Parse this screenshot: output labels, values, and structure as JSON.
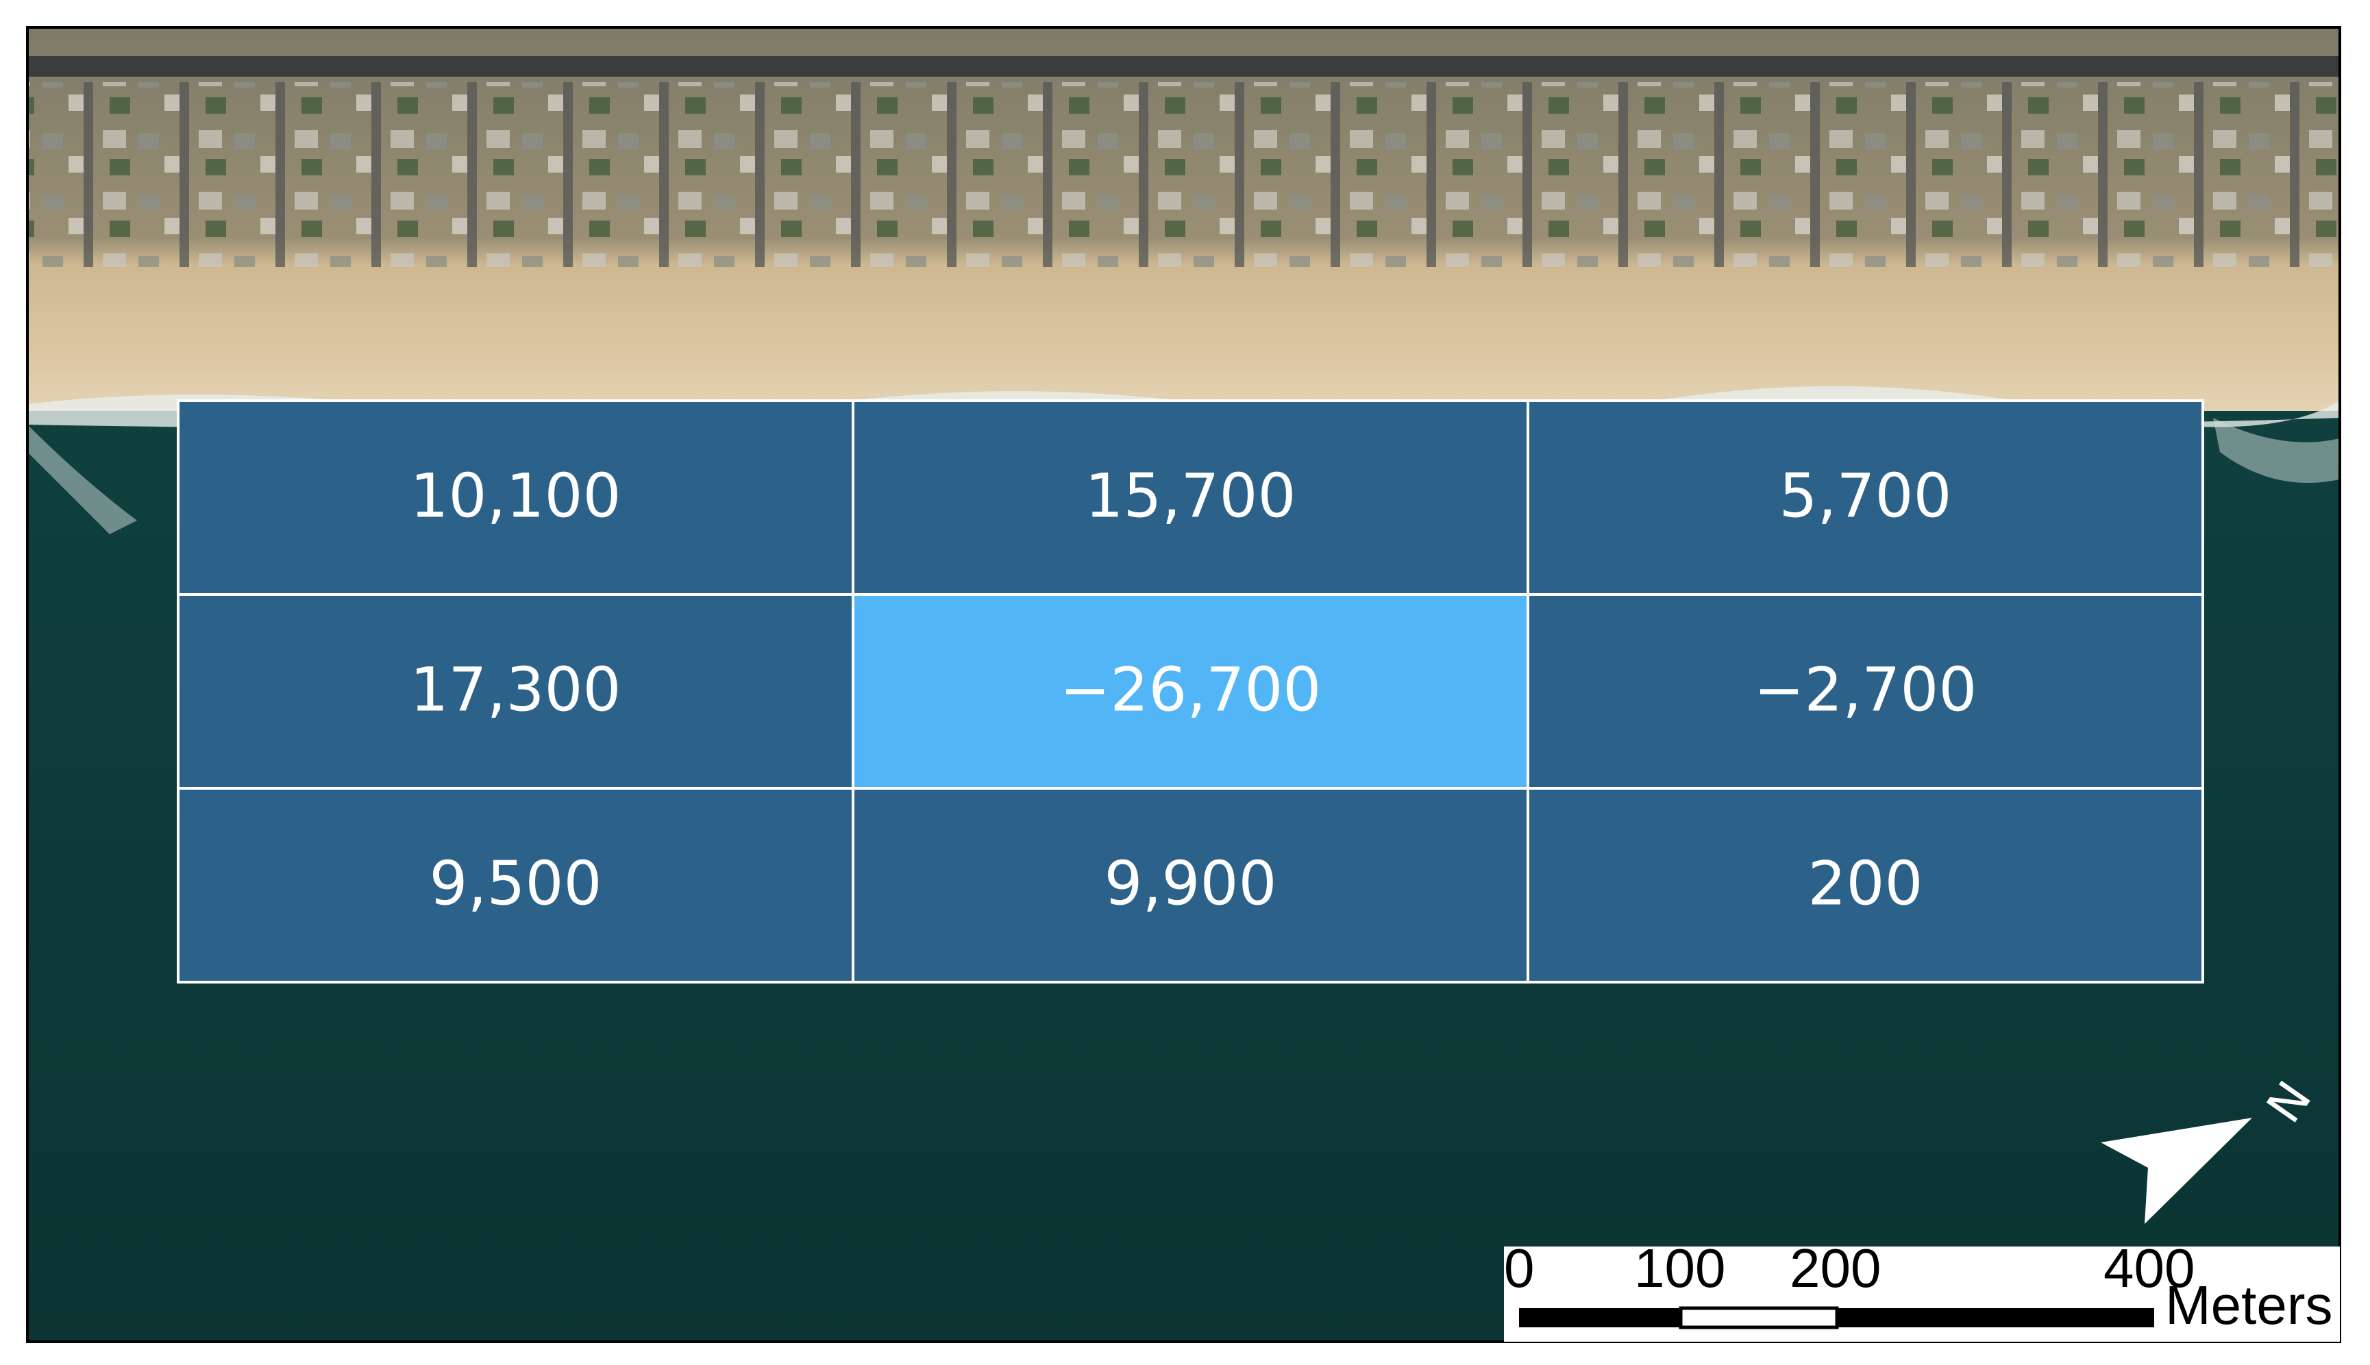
{
  "grid": {
    "rows": [
      [
        "10,100",
        "15,700",
        "5,700"
      ],
      [
        "17,300",
        "−26,700",
        "−2,700"
      ],
      [
        "9,500",
        "9,900",
        "200"
      ]
    ]
  },
  "scale_bar": {
    "labels": [
      "0",
      "100",
      "200",
      "400"
    ],
    "unit": "Meters"
  },
  "north_arrow": {
    "label": "N"
  }
}
